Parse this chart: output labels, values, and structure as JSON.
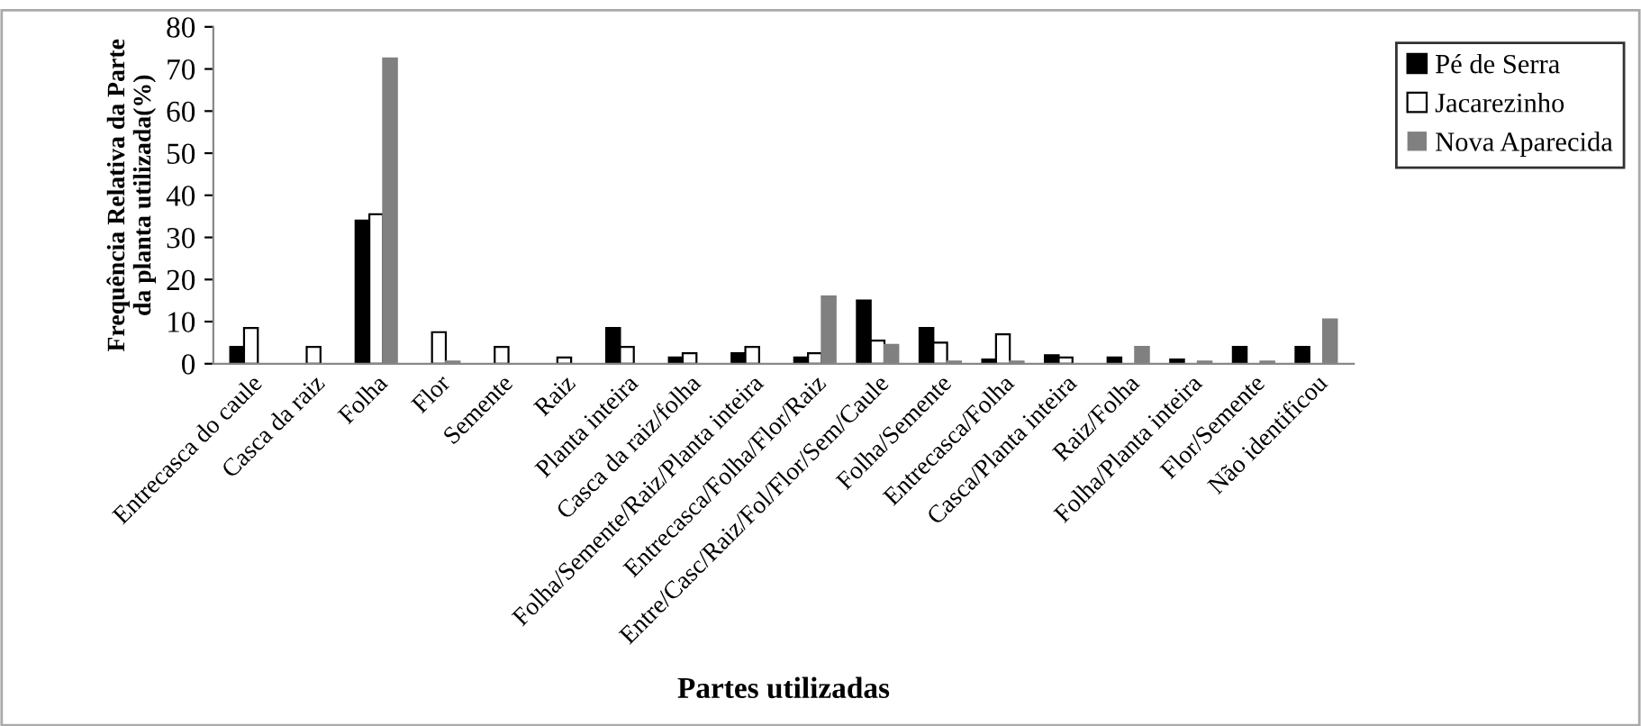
{
  "chart_data": {
    "type": "bar",
    "xlabel": "Partes utilizadas",
    "ylabel": "Frequência Relativa da Parte\nda planta utilizada(%)",
    "categories": [
      "Entrecasca do caule",
      "Casca da raiz",
      "Folha",
      "Flor",
      "Semente",
      "Raiz",
      "Planta inteira",
      "Casca da raiz/folha",
      "Folha/Semente/Raiz/Planta inteira",
      "Entrecasca/Folha/Flor/Raiz",
      "Entre/Casc/Raiz/Fol/Flor/Sem/Caule",
      "Folha/Semente",
      "Entrecasca/Folha",
      "Casca/Planta inteira",
      "Raiz/Folha",
      "Folha/Planta inteira",
      "Flor/Semente",
      "Não identificou"
    ],
    "series": [
      {
        "name": "Pé de Serra",
        "color": "#000000",
        "values": [
          4,
          0,
          34,
          0,
          0,
          0,
          8.5,
          1.5,
          2.5,
          1.5,
          15,
          8.5,
          1,
          2,
          1.5,
          1,
          4,
          4
        ]
      },
      {
        "name": "Jacarezinho",
        "color": "#ffffff",
        "values": [
          8.5,
          4,
          35.5,
          7.5,
          4,
          1.5,
          4,
          2.5,
          4,
          2.5,
          5.5,
          5,
          7,
          1.5,
          0,
          0,
          0,
          0
        ]
      },
      {
        "name": "Nova Aparecida",
        "color": "#808080",
        "values": [
          0,
          0,
          72.5,
          0.5,
          0,
          0,
          0,
          0,
          0,
          16,
          4.5,
          0.5,
          0.5,
          0,
          4,
          0.5,
          0.5,
          10.5
        ]
      }
    ],
    "ylim": [
      0,
      80
    ],
    "yticks": [
      0,
      10,
      20,
      30,
      40,
      50,
      60,
      70,
      80
    ],
    "grid": false,
    "legend": "top right"
  }
}
